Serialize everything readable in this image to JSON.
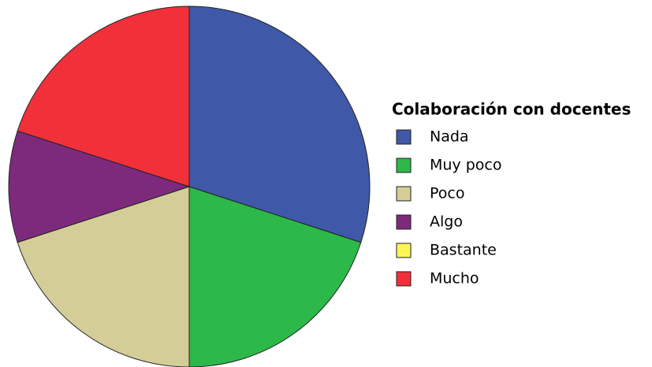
{
  "chart_data": {
    "type": "pie",
    "legend_title": "Colaboración con docentes",
    "categories": [
      "Nada",
      "Muy poco",
      "Poco",
      "Algo",
      "Bastante",
      "Mucho"
    ],
    "values": [
      30,
      20,
      20,
      10,
      0,
      20
    ],
    "colors": [
      "#3f58a8",
      "#2db84a",
      "#d4cd98",
      "#7d2a7d",
      "#fbf55a",
      "#f2303a"
    ],
    "legend": "right"
  }
}
